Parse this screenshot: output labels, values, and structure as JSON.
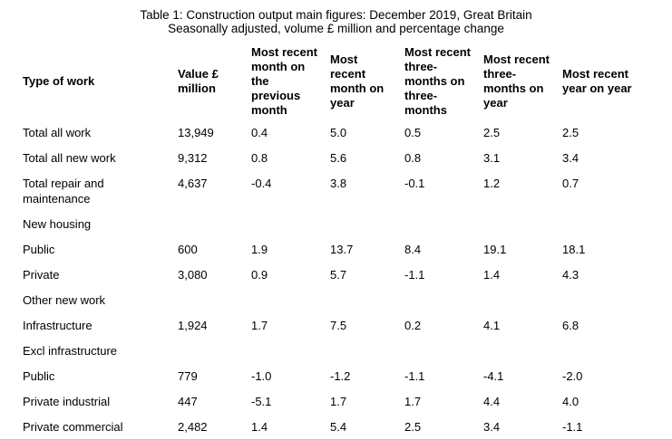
{
  "title": {
    "line1": "Table 1: Construction output main figures: December 2019, Great Britain",
    "line2": "Seasonally adjusted, volume £ million and percentage change"
  },
  "table": {
    "columns": [
      {
        "label": "Type of work"
      },
      {
        "label": "Value £\nmillion"
      },
      {
        "label": "Most recent\nmonth on\nthe\nprevious\nmonth"
      },
      {
        "label": "Most\nrecent\nmonth on\nyear"
      },
      {
        "label": "Most recent\nthree-\nmonths on\nthree-\nmonths"
      },
      {
        "label": "Most recent\nthree-\nmonths on\nyear"
      },
      {
        "label": "Most recent\nyear on year"
      }
    ],
    "rows": [
      {
        "label": "Total all work",
        "section": false,
        "values": [
          "13,949",
          "0.4",
          "5.0",
          "0.5",
          "2.5",
          "2.5"
        ]
      },
      {
        "label": "Total all new work",
        "section": false,
        "values": [
          "9,312",
          "0.8",
          "5.6",
          "0.8",
          "3.1",
          "3.4"
        ]
      },
      {
        "label": "Total repair and\nmaintenance",
        "section": false,
        "values": [
          "4,637",
          "-0.4",
          "3.8",
          "-0.1",
          "1.2",
          "0.7"
        ]
      },
      {
        "label": "New housing",
        "section": true,
        "values": [
          "",
          "",
          "",
          "",
          "",
          ""
        ]
      },
      {
        "label": "Public",
        "section": false,
        "values": [
          "600",
          "1.9",
          "13.7",
          "8.4",
          "19.1",
          "18.1"
        ]
      },
      {
        "label": "Private",
        "section": false,
        "values": [
          "3,080",
          "0.9",
          "5.7",
          "-1.1",
          "1.4",
          "4.3"
        ]
      },
      {
        "label": "Other new work",
        "section": true,
        "values": [
          "",
          "",
          "",
          "",
          "",
          ""
        ]
      },
      {
        "label": "Infrastructure",
        "section": false,
        "values": [
          "1,924",
          "1.7",
          "7.5",
          "0.2",
          "4.1",
          "6.8"
        ]
      },
      {
        "label": "Excl infrastructure",
        "section": true,
        "values": [
          "",
          "",
          "",
          "",
          "",
          ""
        ]
      },
      {
        "label": "Public",
        "section": false,
        "values": [
          "779",
          "-1.0",
          "-1.2",
          "-1.1",
          "-4.1",
          "-2.0"
        ]
      },
      {
        "label": "Private industrial",
        "section": false,
        "values": [
          "447",
          "-5.1",
          "1.7",
          "1.7",
          "4.4",
          "4.0"
        ]
      },
      {
        "label": "Private commercial",
        "section": false,
        "values": [
          "2,482",
          "1.4",
          "5.4",
          "2.5",
          "3.4",
          "-1.1"
        ]
      }
    ]
  },
  "colors": {
    "text": "#000000",
    "background": "#ffffff",
    "bottom_rule": "#c9c9c9"
  }
}
